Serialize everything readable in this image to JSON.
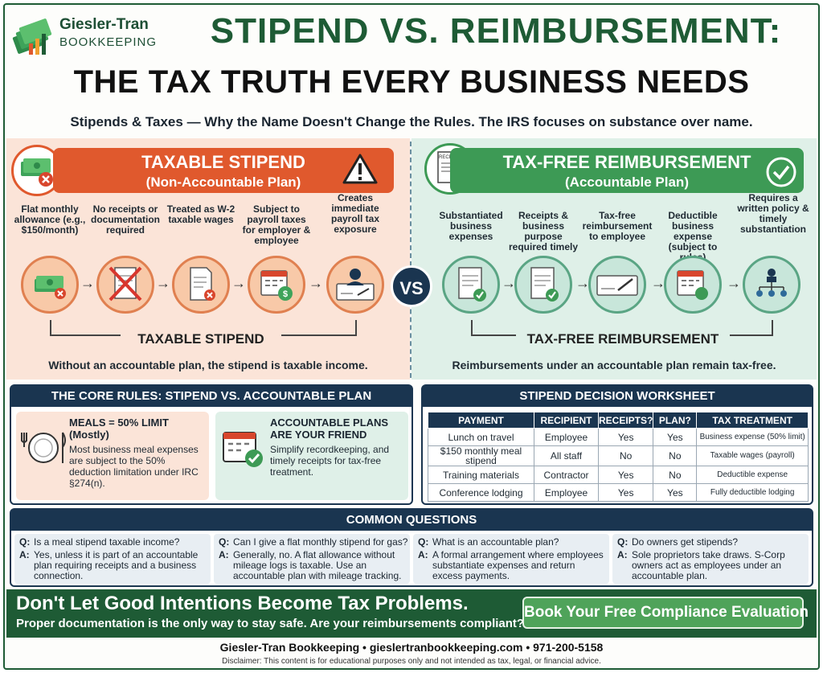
{
  "brand": {
    "name": "Giesler-Tran",
    "tagline": "BOOKKEEPING"
  },
  "title": {
    "line1": "STIPEND VS. REIMBURSEMENT:",
    "line2": "THE TAX TRUTH EVERY BUSINESS NEEDS"
  },
  "subtitle": "Stipends & Taxes — Why the Name Doesn't Change the Rules. The IRS focuses on substance over name.",
  "taxable": {
    "title": "TAXABLE STIPEND",
    "subtitle": "(Non-Accountable Plan)",
    "steps": [
      {
        "label": "Flat monthly allowance (e.g., $150/month)",
        "icon": "cash-icon"
      },
      {
        "label": "No receipts or documentation required",
        "icon": "crossed-receipt-icon"
      },
      {
        "label": "Treated as W-2 taxable wages",
        "icon": "document-icon"
      },
      {
        "label": "Subject to payroll taxes for employer & employee",
        "icon": "calendar-dollar-icon"
      },
      {
        "label": "Creates immediate payroll tax exposure",
        "icon": "paycheck-icon"
      }
    ],
    "flow_label": "TAXABLE STIPEND",
    "note": "Without an accountable plan, the stipend is taxable income."
  },
  "vs": "VS",
  "taxfree": {
    "title": "TAX-FREE REIMBURSEMENT",
    "subtitle": "(Accountable Plan)",
    "receipt_word": "RECEIPT",
    "steps": [
      {
        "label": "Substantiated business expenses",
        "icon": "receipt-check-icon"
      },
      {
        "label": "Receipts & business purpose required timely",
        "icon": "receipt-icon"
      },
      {
        "label": "Tax-free reimbursement to employee",
        "icon": "check-payment-icon"
      },
      {
        "label": "Deductible business expense (subject to rules)",
        "icon": "calendar-icon"
      },
      {
        "label": "Requires a written policy & timely substantiation",
        "icon": "org-chart-icon"
      }
    ],
    "flow_label": "TAX-FREE REIMBURSEMENT",
    "note": "Reimbursements under an accountable plan remain tax-free."
  },
  "rules": {
    "header": "THE CORE RULES: STIPEND VS. ACCOUNTABLE PLAN",
    "meals": {
      "title": "MEALS = 50% LIMIT (Mostly)",
      "body": "Most business meal expenses are subject to the 50% deduction limitation under IRC §274(n)."
    },
    "plans": {
      "title": "ACCOUNTABLE PLANS ARE YOUR FRIEND",
      "body": "Simplify recordkeeping, and timely receipts for tax-free treatment."
    }
  },
  "worksheet": {
    "header": "STIPEND DECISION WORKSHEET",
    "columns": [
      "PAYMENT",
      "RECIPIENT",
      "RECEIPTS?",
      "PLAN?",
      "TAX TREATMENT"
    ],
    "rows": [
      [
        "Lunch on travel",
        "Employee",
        "Yes",
        "Yes",
        "Business expense (50% limit)"
      ],
      [
        "$150 monthly meal stipend",
        "All staff",
        "No",
        "No",
        "Taxable wages (payroll)"
      ],
      [
        "Training materials",
        "Contractor",
        "Yes",
        "No",
        "Deductible expense"
      ],
      [
        "Conference lodging",
        "Employee",
        "Yes",
        "Yes",
        "Fully deductible lodging"
      ]
    ]
  },
  "faq": {
    "header": "COMMON QUESTIONS",
    "q_marker": "Q:",
    "a_marker": "A:",
    "items": [
      {
        "q": "Is a meal stipend taxable income?",
        "a": "Yes, unless it is part of an accountable plan requiring receipts and a business connection."
      },
      {
        "q": "Can I give a flat monthly stipend for gas?",
        "a": "Generally, no. A flat allowance without mileage logs is taxable. Use an accountable plan with mileage tracking."
      },
      {
        "q": "What is an accountable plan?",
        "a": "A formal arrangement where employees substantiate expenses and return excess payments."
      },
      {
        "q": "Do owners get stipends?",
        "a": "Sole proprietors take draws. S-Corp owners act as employees under an accountable plan."
      }
    ]
  },
  "cta": {
    "headline": "Don't Let Good Intentions Become Tax Problems.",
    "subline": "Proper documentation is the only way to stay safe. Are your reimbursements compliant?",
    "button": "Book Your Free Compliance Evaluation"
  },
  "footer": "Giesler-Tran Bookkeeping • gieslertranbookkeeping.com • 971-200-5158",
  "disclaimer": "Disclaimer: This content is for educational purposes only and not intended as tax, legal, or financial advice.",
  "colors": {
    "brand_green": "#1e5b35",
    "taxable_orange": "#e0592d",
    "taxfree_green": "#3d9a55",
    "navy": "#1a3550"
  }
}
